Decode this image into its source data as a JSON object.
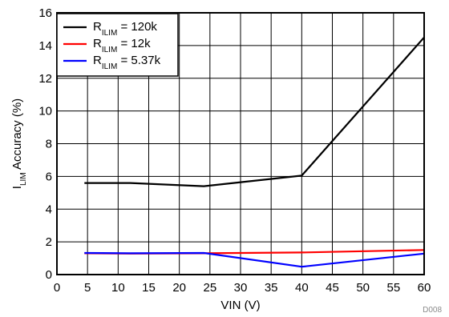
{
  "chart_data": {
    "type": "line",
    "xlabel": "VIN  (V)",
    "ylabel_main": "I",
    "ylabel_sub": "LIM",
    "ylabel_rest": " Accuracy (%)",
    "xlim": [
      0,
      60
    ],
    "ylim": [
      0,
      16
    ],
    "xticks": [
      0,
      5,
      10,
      15,
      20,
      25,
      30,
      35,
      40,
      45,
      50,
      55,
      60
    ],
    "yticks": [
      0,
      2,
      4,
      6,
      8,
      10,
      12,
      14,
      16
    ],
    "grid": true,
    "legend_position": "top-left",
    "series": [
      {
        "name_main": "R",
        "name_sub": "ILIM",
        "name_rest": " = 120k",
        "color": "#000000",
        "x": [
          4.5,
          12,
          24,
          40,
          60
        ],
        "y": [
          5.6,
          5.6,
          5.4,
          6.05,
          14.5
        ]
      },
      {
        "name_main": "R",
        "name_sub": "ILIM",
        "name_rest": " = 12k",
        "color": "#ff0000",
        "x": [
          4.5,
          12,
          24,
          40,
          60
        ],
        "y": [
          1.3,
          1.28,
          1.3,
          1.35,
          1.5
        ]
      },
      {
        "name_main": "R",
        "name_sub": "ILIM",
        "name_rest": " = 5.37k",
        "color": "#0000ff",
        "x": [
          4.5,
          12,
          24,
          40,
          60
        ],
        "y": [
          1.32,
          1.3,
          1.32,
          0.48,
          1.28
        ]
      }
    ],
    "figure_code": "D008"
  }
}
